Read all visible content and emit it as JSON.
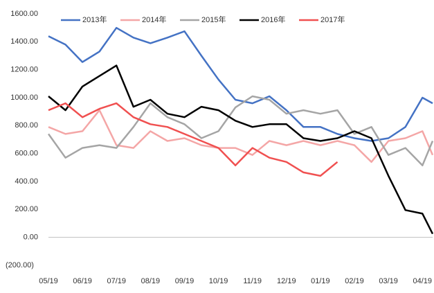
{
  "chart_data": {
    "type": "line",
    "x": [
      0,
      0.5,
      1,
      1.5,
      2,
      2.5,
      3,
      3.5,
      4,
      4.5,
      5,
      5.5,
      6,
      6.5,
      7,
      7.5,
      8,
      8.5,
      9,
      9.5,
      10,
      10.5,
      11,
      11.3
    ],
    "xlim": [
      0,
      11.3
    ],
    "xticks": [
      {
        "value": 0,
        "label": "05/19"
      },
      {
        "value": 1,
        "label": "06/19"
      },
      {
        "value": 2,
        "label": "07/19"
      },
      {
        "value": 3,
        "label": "08/19"
      },
      {
        "value": 4,
        "label": "09/19"
      },
      {
        "value": 5,
        "label": "10/19"
      },
      {
        "value": 6,
        "label": "11/19"
      },
      {
        "value": 7,
        "label": "12/19"
      },
      {
        "value": 8,
        "label": "01/19"
      },
      {
        "value": 9,
        "label": "02/19"
      },
      {
        "value": 10,
        "label": "03/19"
      },
      {
        "value": 11,
        "label": "04/19"
      }
    ],
    "ylim": [
      -200,
      1600
    ],
    "yticks": [
      {
        "value": 1600,
        "label": "1600.00"
      },
      {
        "value": 1400,
        "label": "1400.00"
      },
      {
        "value": 1200,
        "label": "1200.00"
      },
      {
        "value": 1000,
        "label": "1000.00"
      },
      {
        "value": 800,
        "label": "800.00"
      },
      {
        "value": 600,
        "label": "600.00"
      },
      {
        "value": 400,
        "label": "400.00"
      },
      {
        "value": 200,
        "label": "200.00"
      },
      {
        "value": 0,
        "label": "0.00"
      },
      {
        "value": -200,
        "label": "(200.00)"
      }
    ],
    "legend": "top",
    "series": [
      {
        "name": "2013年",
        "color": "#4472c4",
        "values": [
          1440,
          1380,
          1255,
          1330,
          1500,
          1430,
          1390,
          1430,
          1475,
          1300,
          1130,
          985,
          960,
          1010,
          910,
          790,
          790,
          740,
          710,
          690,
          710,
          790,
          1000,
          960
        ]
      },
      {
        "name": "2014年",
        "color": "#f4a6a6",
        "values": [
          790,
          740,
          760,
          910,
          660,
          640,
          760,
          690,
          710,
          660,
          640,
          640,
          590,
          690,
          660,
          690,
          660,
          690,
          660,
          540,
          690,
          710,
          760,
          590
        ]
      },
      {
        "name": "2015年",
        "color": "#a5a5a5",
        "values": [
          740,
          570,
          640,
          660,
          640,
          790,
          960,
          860,
          810,
          710,
          760,
          930,
          1010,
          985,
          885,
          910,
          885,
          910,
          740,
          790,
          590,
          640,
          515,
          690
        ]
      },
      {
        "name": "2016年",
        "color": "#000000",
        "values": [
          1010,
          910,
          1080,
          1155,
          1230,
          935,
          985,
          885,
          860,
          935,
          910,
          835,
          790,
          810,
          810,
          710,
          690,
          710,
          760,
          710,
          440,
          195,
          170,
          25
        ]
      },
      {
        "name": "2017年",
        "color": "#f05050",
        "values": [
          910,
          960,
          860,
          920,
          960,
          860,
          810,
          790,
          740,
          690,
          640,
          515,
          640,
          570,
          540,
          465,
          440,
          540,
          null,
          null,
          null,
          null,
          null,
          null
        ]
      }
    ]
  }
}
